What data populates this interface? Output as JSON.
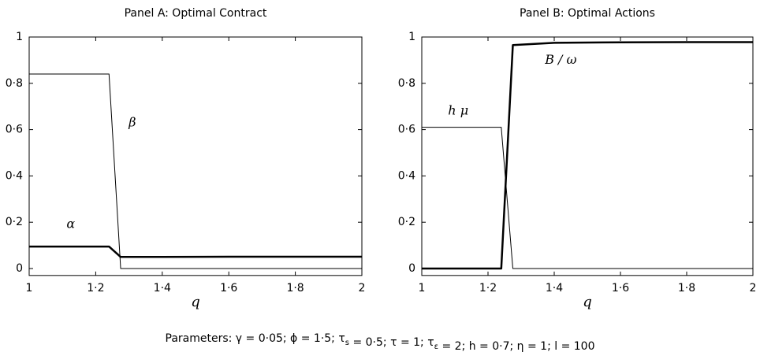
{
  "chart_data": [
    {
      "type": "line",
      "title": "Panel A: Optimal Contract",
      "xlabel": "q",
      "x": [
        1,
        1.24,
        1.275,
        1.4,
        1.6,
        1.8,
        2
      ],
      "series": [
        {
          "name": "β",
          "color": "#000000",
          "linewidth": 1,
          "values": [
            0.84,
            0.84,
            0,
            0,
            0,
            0,
            0
          ]
        },
        {
          "name": "α",
          "color": "#000000",
          "linewidth": 2.5,
          "values": [
            0.095,
            0.095,
            0.05,
            0.05,
            0.051,
            0.051,
            0.051
          ]
        }
      ],
      "xlim": [
        1,
        2
      ],
      "ylim": [
        -0.03,
        1
      ],
      "xticks": [
        1,
        {
          "value": 1.2,
          "label": "1·2"
        },
        {
          "value": 1.4,
          "label": "1·4"
        },
        {
          "value": 1.6,
          "label": "1·6"
        },
        {
          "value": 1.8,
          "label": "1·8"
        },
        2
      ],
      "yticks": [
        0,
        {
          "value": 0.2,
          "label": "0·2"
        },
        {
          "value": 0.4,
          "label": "0·4"
        },
        {
          "value": 0.6,
          "label": "0·6"
        },
        {
          "value": 0.8,
          "label": "0·8"
        },
        1
      ],
      "grid": false
    },
    {
      "type": "line",
      "title": "Panel B: Optimal Actions",
      "xlabel": "q",
      "x": [
        1,
        1.24,
        1.275,
        1.4,
        1.6,
        1.8,
        2
      ],
      "series": [
        {
          "name": "h μ",
          "color": "#000000",
          "linewidth": 1,
          "values": [
            0.61,
            0.61,
            0,
            0,
            0,
            0,
            0
          ]
        },
        {
          "name": "B / ω",
          "color": "#000000",
          "linewidth": 2.5,
          "values": [
            0,
            0,
            0.965,
            0.975,
            0.977,
            0.978,
            0.978
          ]
        }
      ],
      "xlim": [
        1,
        2
      ],
      "ylim": [
        -0.03,
        1
      ],
      "xticks": [
        1,
        {
          "value": 1.2,
          "label": "1·2"
        },
        {
          "value": 1.4,
          "label": "1·4"
        },
        {
          "value": 1.6,
          "label": "1·6"
        },
        {
          "value": 1.8,
          "label": "1·8"
        },
        2
      ],
      "yticks": [
        0,
        {
          "value": 0.2,
          "label": "0·2"
        },
        {
          "value": 0.4,
          "label": "0·4"
        },
        {
          "value": 0.6,
          "label": "0·6"
        },
        {
          "value": 0.8,
          "label": "0·8"
        },
        1
      ],
      "grid": false
    }
  ],
  "caption": [
    {
      "text": "Parameters: γ = 0·05; ϕ = 1·5; τ",
      "sub": "s"
    },
    {
      "text": " = 0·5; τ = 1; τ",
      "sub": "ε"
    },
    {
      "text": " = 2; h = 0·7; η = 1; l = 100"
    }
  ]
}
